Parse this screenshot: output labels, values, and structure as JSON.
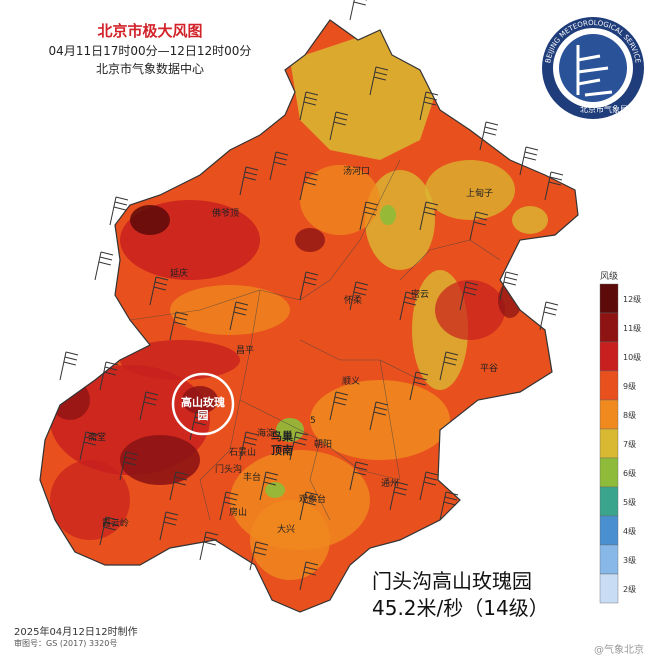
{
  "title": "北京市极大风图",
  "time_range": "04月11日17时00分—12日12时00分",
  "issuer": "北京市气象数据中心",
  "logo": {
    "text_top": "BEIJING METEOROLOGICAL SERVICE",
    "text_bottom": "北京市气象局",
    "colors": {
      "ring": "#1f3d7a",
      "inner": "#2a5298"
    }
  },
  "legend": {
    "title": "风级",
    "levels": [
      {
        "label": "12级",
        "color": "#5c0a0a"
      },
      {
        "label": "11级",
        "color": "#8e1414"
      },
      {
        "label": "10级",
        "color": "#c8201e"
      },
      {
        "label": "9级",
        "color": "#e8501e"
      },
      {
        "label": "8级",
        "color": "#f08a1e"
      },
      {
        "label": "7级",
        "color": "#d9b832"
      },
      {
        "label": "6级",
        "color": "#8ebc3a"
      },
      {
        "label": "5级",
        "color": "#3aa58c"
      },
      {
        "label": "4级",
        "color": "#4a90d0"
      },
      {
        "label": "3级",
        "color": "#88b8e8"
      },
      {
        "label": "2级",
        "color": "#c8dcf4"
      }
    ]
  },
  "places": [
    {
      "name": "汤河口"
    },
    {
      "name": "上甸子"
    },
    {
      "name": "佛爷顶"
    },
    {
      "name": "延庆"
    },
    {
      "name": "怀柔"
    },
    {
      "name": "密云"
    },
    {
      "name": "昌平"
    },
    {
      "name": "平谷"
    },
    {
      "name": "顺义"
    },
    {
      "name": "海淀"
    },
    {
      "name": "朝阳"
    },
    {
      "name": "石景山"
    },
    {
      "name": "门头沟"
    },
    {
      "name": "丰台"
    },
    {
      "name": "斋堂"
    },
    {
      "name": "通州"
    },
    {
      "name": "房山"
    },
    {
      "name": "观象台"
    },
    {
      "name": "大兴"
    },
    {
      "name": "霞云岭"
    }
  ],
  "highlight": {
    "circle_label": "高山玫瑰园",
    "station": "鸟巢顶南",
    "mark": "5"
  },
  "callout": {
    "line1": "门头沟高山玫瑰园",
    "line2": "45.2米/秒（14级）"
  },
  "footer": {
    "made": "2025年04月12日12时制作",
    "approval": "审图号：GS (2017) 3320号"
  },
  "watermark": "@气象北京"
}
